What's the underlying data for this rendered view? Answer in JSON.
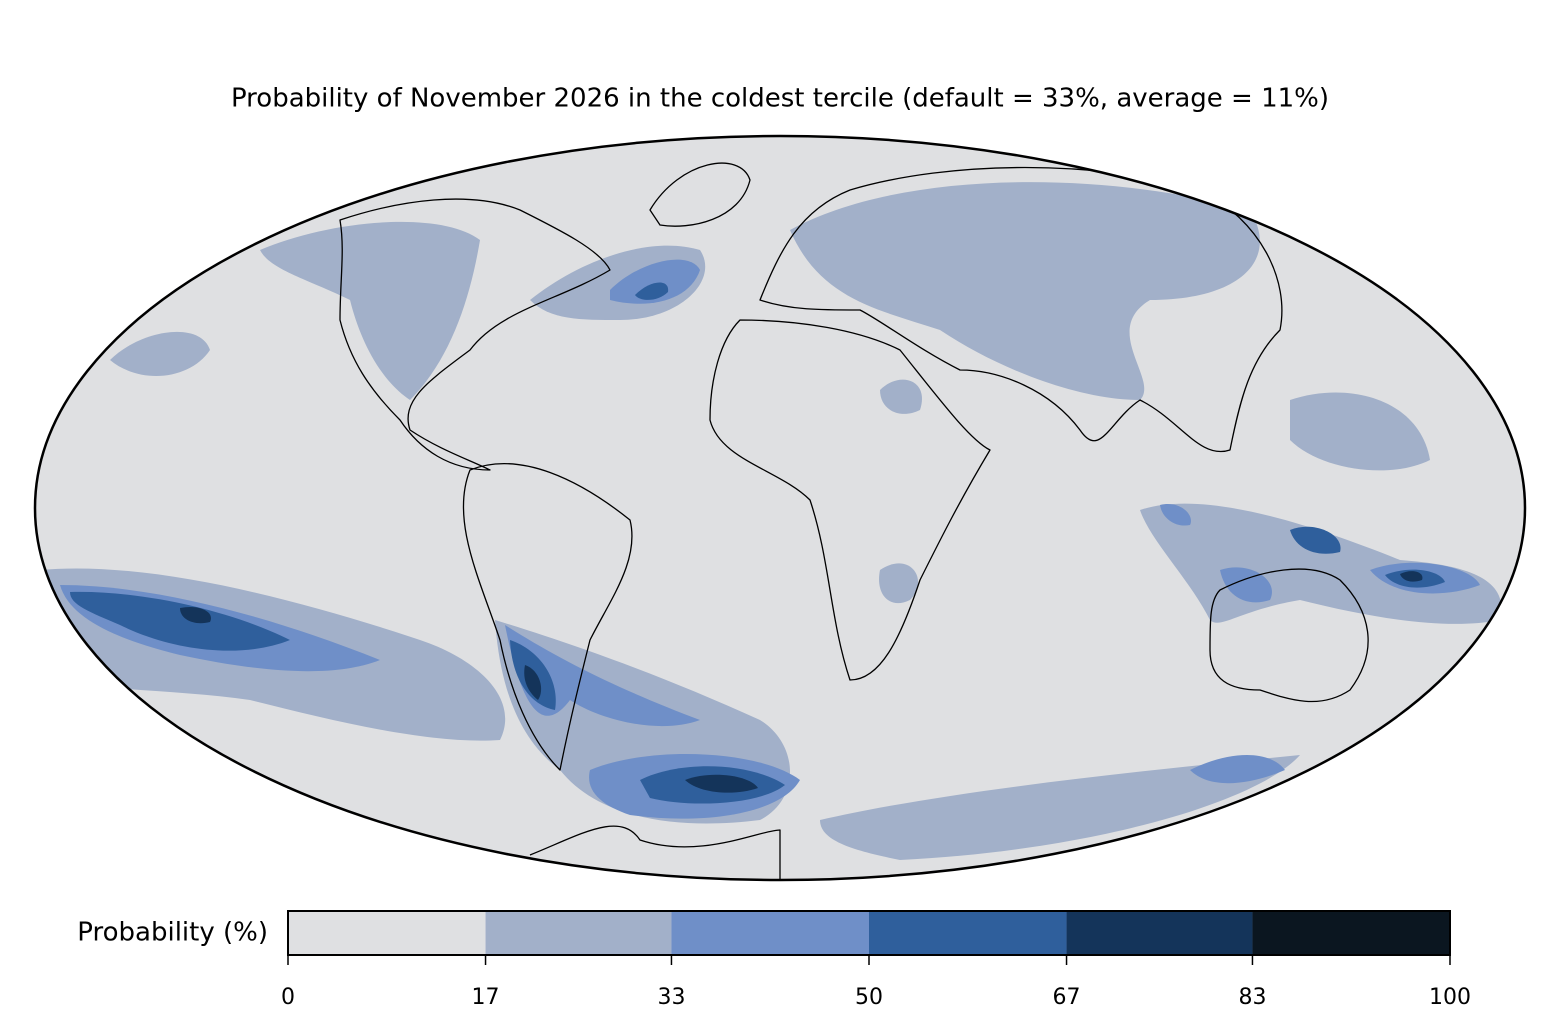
{
  "title": "Probability of November 2026 in the coldest tercile (default = 33%, average = 11%)",
  "colorbar": {
    "label": "Probability (%)",
    "ticks": [
      0,
      17,
      33,
      50,
      67,
      83,
      100
    ],
    "colors": [
      "#dfe0e2",
      "#a2b0c9",
      "#6f8fc8",
      "#2f5f9c",
      "#14345a",
      "#0b1620"
    ]
  }
}
